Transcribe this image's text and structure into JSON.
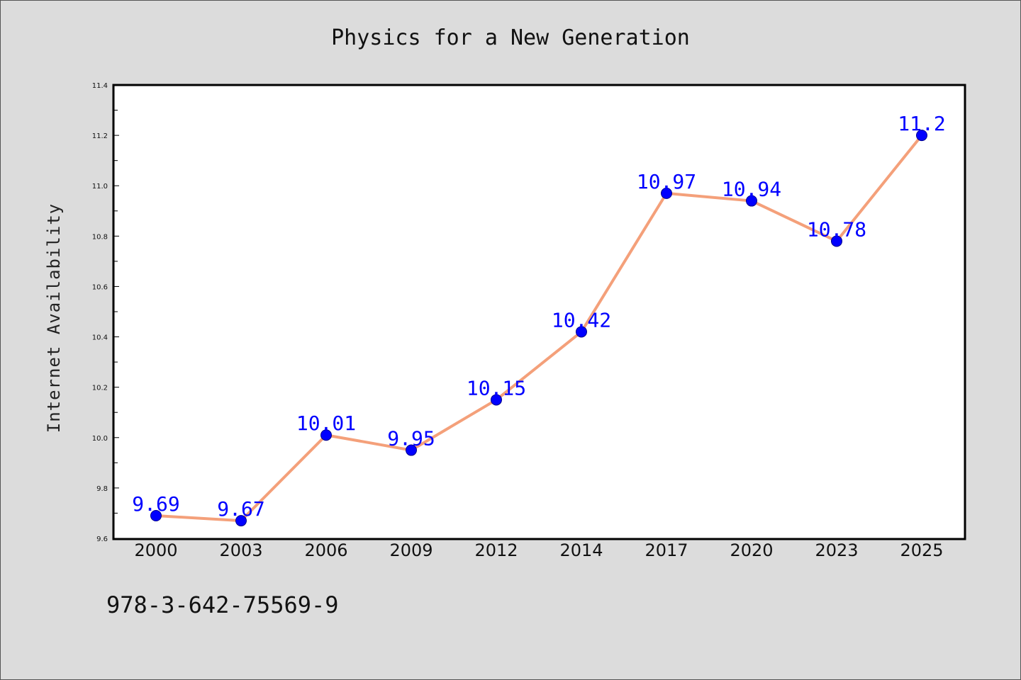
{
  "chart_data": {
    "type": "line",
    "title": "Physics for a New Generation",
    "xlabel": "",
    "ylabel": "Internet Availability",
    "categories": [
      "2000",
      "2003",
      "2006",
      "2009",
      "2012",
      "2014",
      "2017",
      "2020",
      "2023",
      "2025"
    ],
    "series": [
      {
        "values": [
          9.69,
          9.67,
          10.01,
          9.95,
          10.15,
          10.42,
          10.97,
          10.94,
          10.78,
          11.2
        ],
        "line_color": "#f4a07a",
        "marker_color": "#0000ff"
      }
    ],
    "data_labels": [
      "9.69",
      "9.67",
      "10.01",
      "9.95",
      "10.15",
      "10.42",
      "10.97",
      "10.94",
      "10.78",
      "11.2"
    ],
    "ylim": [
      9.6,
      11.4
    ],
    "yticks": [
      "9.6",
      "9.8",
      "10.0",
      "10.2",
      "10.4",
      "10.6",
      "10.8",
      "11.0",
      "11.2",
      "11.4"
    ],
    "grid": false,
    "legend": "none"
  },
  "footer": {
    "isbn": "978-3-642-75569-9"
  },
  "colors": {
    "background": "#dcdcdc",
    "plot_background": "#ffffff",
    "line": "#f4a07a",
    "marker": "#0000ff",
    "label": "#0000ff"
  }
}
